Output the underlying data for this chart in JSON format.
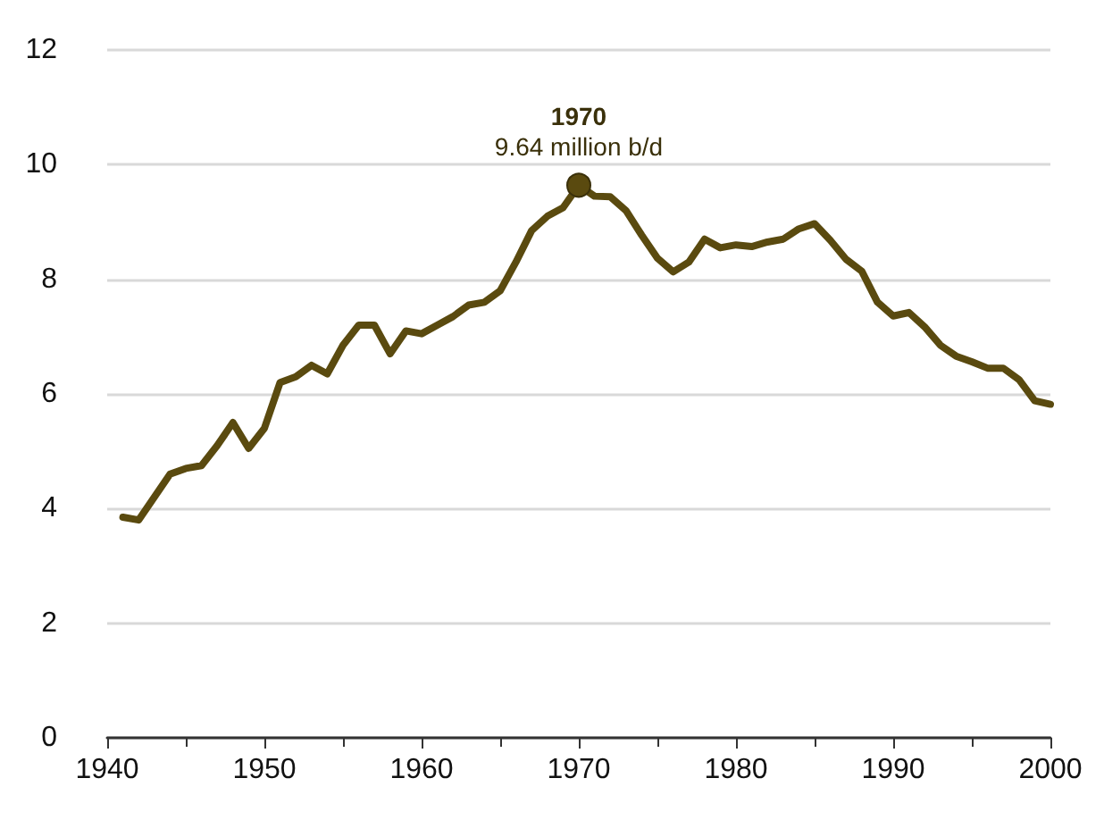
{
  "chart_data": {
    "type": "line",
    "x": [
      1941,
      1942,
      1943,
      1944,
      1945,
      1946,
      1947,
      1948,
      1949,
      1950,
      1951,
      1952,
      1953,
      1954,
      1955,
      1956,
      1957,
      1958,
      1959,
      1960,
      1961,
      1962,
      1963,
      1964,
      1965,
      1966,
      1967,
      1968,
      1969,
      1970,
      1971,
      1972,
      1973,
      1974,
      1975,
      1976,
      1977,
      1978,
      1979,
      1980,
      1981,
      1982,
      1983,
      1984,
      1985,
      1986,
      1987,
      1988,
      1989,
      1990,
      1991,
      1992,
      1993,
      1994,
      1995,
      1996,
      1997,
      1998,
      1999,
      2000
    ],
    "series": [
      {
        "color": "#5a4a0f",
        "values": [
          3.85,
          3.8,
          4.2,
          4.6,
          4.7,
          4.75,
          5.1,
          5.5,
          5.05,
          5.4,
          6.2,
          6.3,
          6.5,
          6.35,
          6.85,
          7.2,
          7.2,
          6.7,
          7.1,
          7.05,
          7.2,
          7.35,
          7.55,
          7.6,
          7.8,
          8.3,
          8.85,
          9.1,
          9.25,
          9.64,
          9.45,
          9.44,
          9.2,
          8.77,
          8.37,
          8.13,
          8.3,
          8.7,
          8.55,
          8.6,
          8.57,
          8.65,
          8.7,
          8.88,
          8.97,
          8.68,
          8.35,
          8.14,
          7.6,
          7.36,
          7.42,
          7.17,
          6.85,
          6.66,
          6.56,
          6.45,
          6.45,
          6.25,
          5.88,
          5.82
        ]
      }
    ],
    "xlim": [
      1940,
      2000
    ],
    "xticks": [
      1940,
      1950,
      1960,
      1970,
      1980,
      1990,
      2000
    ],
    "ylim": [
      0,
      12
    ],
    "yticks": [
      0,
      2,
      4,
      6,
      8,
      10,
      12
    ],
    "grid": "y",
    "marker": "none",
    "line_style": "solid",
    "annotations": [
      {
        "text": "1970",
        "x": 1970,
        "y": 9.64
      },
      {
        "text": "9.64 million b/d",
        "x": 1970,
        "y": 9.64
      }
    ]
  }
}
